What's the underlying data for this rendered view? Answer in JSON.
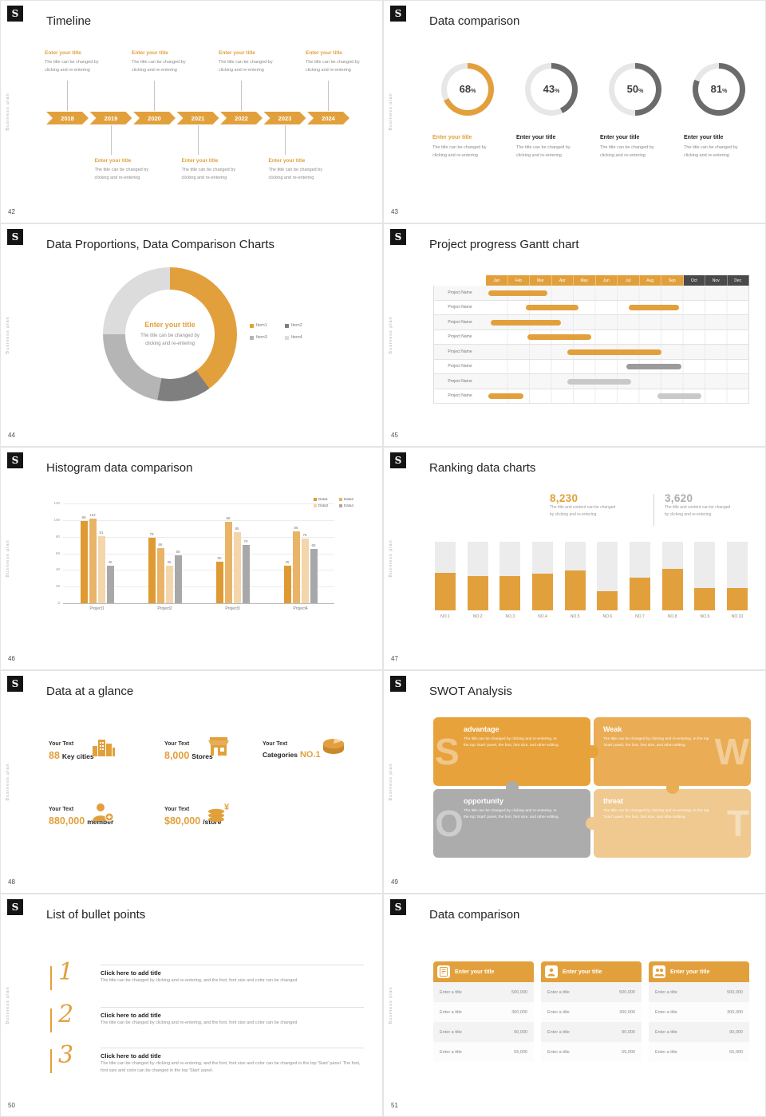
{
  "common": {
    "logo_glyph": "S",
    "side_text": "Business plan",
    "colors": {
      "accent": "#E2A03C",
      "ring_track": "#E7E7E7",
      "ring_gray": "#6B6B6B",
      "gantt_dark": "#4A4A4A",
      "bar_gray": "#9B9B9B",
      "bar_light": "#C9C9C9"
    }
  },
  "slides": {
    "timeline": {
      "page": "42",
      "title": "Timeline",
      "years": [
        "2018",
        "2019",
        "2020",
        "2021",
        "2022",
        "2023",
        "2024"
      ],
      "entry_title": "Enter your title",
      "entry_line1": "The title can be changed by",
      "entry_line2": "clicking and re-entering"
    },
    "rings": {
      "page": "43",
      "title": "Data comparison",
      "item_title": "Enter your title",
      "desc_line1": "The title can be changed by",
      "desc_line2": "clicking and re-entering",
      "items": [
        {
          "percent": 68,
          "accent": true
        },
        {
          "percent": 43,
          "accent": false
        },
        {
          "percent": 50,
          "accent": false
        },
        {
          "percent": 81,
          "accent": false
        }
      ]
    },
    "donut": {
      "page": "44",
      "title": "Data Proportions, Data Comparison Charts",
      "center_title": "Enter your title",
      "center_line1": "The title can be changed by",
      "center_line2": "clicking and re-entering",
      "chart_data": {
        "type": "pie",
        "segments": [
          {
            "label": "Item1",
            "value": 40,
            "color": "#E2A03C"
          },
          {
            "label": "Item2",
            "value": 13,
            "color": "#7F7F7F"
          },
          {
            "label": "Item3",
            "value": 22,
            "color": "#B5B5B5"
          },
          {
            "label": "Item4",
            "value": 25,
            "color": "#DCDCDC"
          }
        ]
      }
    },
    "gantt": {
      "page": "45",
      "title": "Project progress Gantt chart",
      "months": [
        "Jan",
        "Feb",
        "Mar",
        "Apr",
        "May",
        "Jun",
        "Jul",
        "Aug",
        "Sep",
        "Oct",
        "Nov",
        "Dec"
      ],
      "row_label": "Project Name",
      "rows": [
        {
          "bars": [
            {
              "start": 0.1,
              "end": 2.8,
              "color": "accent"
            }
          ]
        },
        {
          "bars": [
            {
              "start": 1.8,
              "end": 4.2,
              "color": "accent"
            },
            {
              "start": 6.5,
              "end": 8.8,
              "color": "accent"
            }
          ]
        },
        {
          "bars": [
            {
              "start": 0.2,
              "end": 3.4,
              "color": "accent"
            }
          ]
        },
        {
          "bars": [
            {
              "start": 1.9,
              "end": 4.8,
              "color": "accent"
            }
          ]
        },
        {
          "bars": [
            {
              "start": 3.7,
              "end": 8.0,
              "color": "accent"
            }
          ]
        },
        {
          "bars": [
            {
              "start": 6.4,
              "end": 8.9,
              "color": "gray"
            }
          ]
        },
        {
          "bars": [
            {
              "start": 3.7,
              "end": 6.6,
              "color": "light"
            }
          ]
        },
        {
          "bars": [
            {
              "start": 0.1,
              "end": 1.7,
              "color": "accent"
            },
            {
              "start": 7.8,
              "end": 9.8,
              "color": "light"
            }
          ]
        }
      ]
    },
    "histogram": {
      "page": "46",
      "title": "Histogram data comparison",
      "chart_data": {
        "type": "bar",
        "categories": [
          "Project1",
          "Project2",
          "Project3",
          "Project4"
        ],
        "series": [
          {
            "name": "Data1",
            "color": "#DF9A33",
            "values": [
              99,
              79,
              50,
              45
            ]
          },
          {
            "name": "Data2",
            "color": "#E9B468",
            "values": [
              102,
              66,
              98,
              86
            ]
          },
          {
            "name": "Data3",
            "color": "#F3D6AB",
            "values": [
              81,
              45,
              85,
              78
            ]
          },
          {
            "name": "Data4",
            "color": "#A8A8A8",
            "values": [
              45,
              58,
              70,
              65
            ]
          }
        ],
        "y_ticks": [
          0,
          20,
          40,
          60,
          80,
          100,
          120
        ],
        "ylim": [
          0,
          120
        ],
        "legend_position": "top-right"
      }
    },
    "ranking": {
      "page": "47",
      "title": "Ranking data charts",
      "stat1": {
        "value": "8,230",
        "line1": "The title and content can be changed",
        "line2": "by clicking and re-entering"
      },
      "stat2": {
        "value": "3,620",
        "line1": "The title and content can be changed",
        "line2": "by clicking and re-entering"
      },
      "chart_data": {
        "type": "bar",
        "categories": [
          "NO.1",
          "NO.2",
          "NO.3",
          "NO.4",
          "NO.5",
          "NO.6",
          "NO.7",
          "NO.8",
          "NO.9",
          "NO.10"
        ],
        "values_pct": [
          55,
          50,
          50,
          53,
          58,
          28,
          48,
          60,
          33,
          33
        ],
        "ylim": [
          0,
          100
        ]
      }
    },
    "glance": {
      "page": "48",
      "title": "Data at a glance",
      "items": [
        {
          "label": "Your Text",
          "prefix": "",
          "value": "88",
          "unit": "Key cities",
          "icon": "city-icon"
        },
        {
          "label": "Your Text",
          "prefix": "",
          "value": "8,000",
          "unit": "Stores",
          "icon": "store-icon"
        },
        {
          "label": "Your Text",
          "prefix": "Categories",
          "value": "NO.1",
          "unit": "",
          "icon": "categories-icon"
        },
        {
          "label": "Your Text",
          "prefix": "",
          "value": "880,000",
          "unit": "member",
          "icon": "member-icon"
        },
        {
          "label": "Your Text",
          "prefix": "",
          "value": "$80,000",
          "unit": "/store",
          "icon": "coins-icon"
        }
      ]
    },
    "swot": {
      "page": "49",
      "title": "SWOT Analysis",
      "desc": "The title can be changed by clicking and re-entering. In the top 'Start' panel, the font, font size, and other editing",
      "quads": [
        {
          "letter": "S",
          "title": "advantage",
          "color": "#E7A23C",
          "side": "left"
        },
        {
          "letter": "W",
          "title": "Weak",
          "color": "#EAAC54",
          "side": "right"
        },
        {
          "letter": "O",
          "title": "opportunity",
          "color": "#ACACAC",
          "side": "left"
        },
        {
          "letter": "T",
          "title": "threat",
          "color": "#EFC98F",
          "side": "right"
        }
      ]
    },
    "bullets": {
      "page": "50",
      "title": "List of bullet points",
      "items": [
        {
          "num": "1",
          "title": "Click here to add title",
          "desc": "The title can be changed by clicking and re-entering, and the font, font size and color can be changed"
        },
        {
          "num": "2",
          "title": "Click here to add title",
          "desc": "The title can be changed by clicking and re-entering, and the font, font size and color can be changed"
        },
        {
          "num": "3",
          "title": "Click here to add title",
          "desc": "The title can be changed by clicking and re-entering, and the font, font size and color can be changed in the top 'Start' panel. The font, font size and color can be changed in the top 'Start' panel."
        }
      ]
    },
    "tables": {
      "page": "51",
      "title": "Data comparison",
      "header": "Enter your title",
      "row_label": "Enter a title",
      "values": [
        "500,000",
        "300,000",
        "90,000",
        "55,000"
      ],
      "card_icons": [
        "document-icon",
        "member-icon",
        "team-icon"
      ]
    }
  }
}
